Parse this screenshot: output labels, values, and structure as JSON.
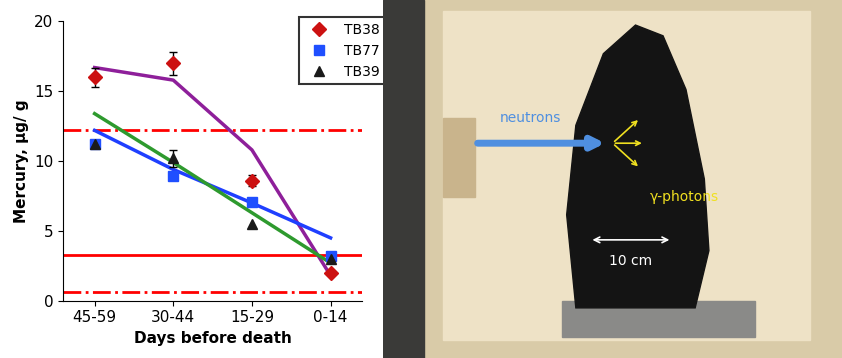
{
  "chart_data": {
    "type": "scatter",
    "x_label": "Days before death",
    "y_label": "Mercury, μg/ g",
    "categories": [
      "45-59",
      "30-44",
      "15-29",
      "0-14"
    ],
    "ylim": [
      0,
      20
    ],
    "yticks": [
      0,
      5,
      10,
      15,
      20
    ],
    "grid": false,
    "legend": "upper right",
    "series": [
      {
        "name": "TB38",
        "type": "scatter",
        "color": "#cc1111",
        "marker": "diamond",
        "values": [
          16.0,
          17.0,
          8.6,
          2.0
        ],
        "errors": [
          0.7,
          0.8,
          0.4,
          null
        ]
      },
      {
        "name": "TB77",
        "type": "scatter",
        "color": "#1f4fff",
        "marker": "square",
        "values": [
          11.2,
          8.9,
          7.1,
          3.2
        ],
        "errors": [
          null,
          null,
          null,
          null
        ]
      },
      {
        "name": "TB39",
        "type": "scatter",
        "color": "#1a1a1a",
        "marker": "triangle",
        "values": [
          11.2,
          10.2,
          5.5,
          3.0
        ],
        "errors": [
          null,
          0.6,
          null,
          null
        ]
      },
      {
        "type": "line",
        "color": "#8e1f9a",
        "line_style": "solid",
        "values": [
          16.7,
          15.8,
          10.8,
          1.8
        ]
      },
      {
        "type": "line",
        "color": "#1f3fff",
        "line_style": "solid",
        "values": [
          12.2,
          9.4,
          7.0,
          4.5
        ]
      },
      {
        "type": "line",
        "color": "#2e9a2e",
        "line_style": "solid",
        "values": [
          13.4,
          9.9,
          6.3,
          2.7
        ]
      }
    ],
    "reference_lines": [
      {
        "value": 12.2,
        "color": "#ff0000",
        "line_style": "dashdot"
      },
      {
        "value": 3.3,
        "color": "#ff0000",
        "line_style": "solid"
      },
      {
        "value": 0.6,
        "color": "#ff0000",
        "line_style": "dashdot"
      }
    ]
  },
  "photo": {
    "arrow_label": "neutrons",
    "emission_label": "γ-photons",
    "scale_label": "10 cm"
  }
}
